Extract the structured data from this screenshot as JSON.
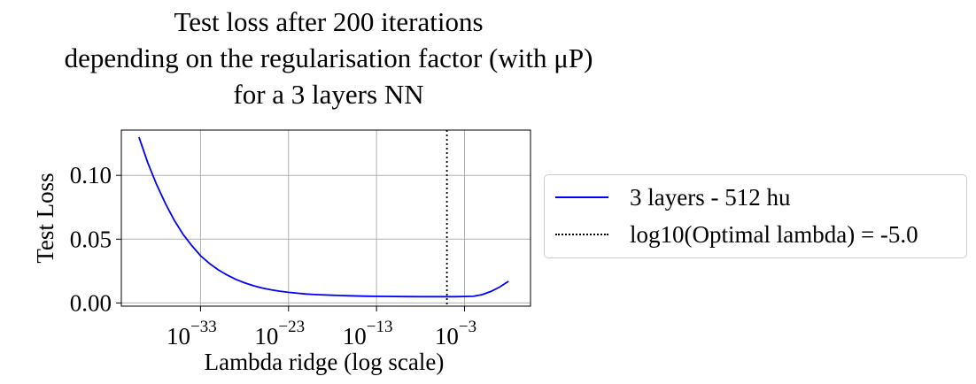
{
  "chart_data": {
    "type": "line",
    "title_lines": [
      "Test loss after 200 iterations",
      "depending on the regularisation factor (with μP)",
      "for a 3 layers NN"
    ],
    "xlabel": "Lambda ridge (log scale)",
    "ylabel": "Test Loss",
    "xscale": "log",
    "xlim_log10": [
      -42,
      4.5
    ],
    "ylim": [
      -0.0025,
      0.1355
    ],
    "x_ticks_log10": [
      -33,
      -23,
      -13,
      -3
    ],
    "x_tick_base": "10",
    "x_tick_exponents": [
      "−33",
      "−23",
      "−13",
      "−3"
    ],
    "y_ticks": [
      0.0,
      0.05,
      0.1
    ],
    "y_tick_labels": [
      "0.00",
      "0.05",
      "0.10"
    ],
    "grid": true,
    "legend_position": "center-left outside",
    "series": [
      {
        "name": "3 layers - 512 hu",
        "color": "#0000ff",
        "style": "solid",
        "x_log10": [
          -40,
          -39,
          -38,
          -37,
          -36,
          -35,
          -34,
          -33,
          -32,
          -31,
          -30,
          -29,
          -28,
          -27,
          -26,
          -25,
          -24,
          -23,
          -22,
          -21,
          -20,
          -18,
          -16,
          -14,
          -12,
          -10,
          -8,
          -6,
          -4,
          -2,
          -1,
          0,
          1,
          2
        ],
        "y": [
          0.13,
          0.11,
          0.093,
          0.078,
          0.065,
          0.054,
          0.045,
          0.037,
          0.031,
          0.026,
          0.022,
          0.0185,
          0.0158,
          0.0135,
          0.0117,
          0.0103,
          0.0092,
          0.0083,
          0.0076,
          0.007,
          0.0066,
          0.006,
          0.0056,
          0.0053,
          0.0051,
          0.005,
          0.0049,
          0.0049,
          0.0049,
          0.0052,
          0.0065,
          0.009,
          0.0125,
          0.017
        ]
      },
      {
        "name": "log10(Optimal lambda) = -5.0",
        "color": "#000000",
        "style": "dotted",
        "vline_x_log10": -5.0
      }
    ]
  }
}
